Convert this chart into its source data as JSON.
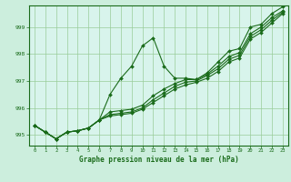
{
  "title": "Graphe pression niveau de la mer (hPa)",
  "background_color": "#cceedd",
  "plot_bg_color": "#d8f4ec",
  "grid_color": "#99cc99",
  "line_color": "#1a6b1a",
  "marker_color": "#1a6b1a",
  "xlim": [
    -0.5,
    23.5
  ],
  "ylim": [
    994.6,
    999.8
  ],
  "yticks": [
    995,
    996,
    997,
    998,
    999
  ],
  "xticks": [
    0,
    1,
    2,
    3,
    4,
    5,
    6,
    7,
    8,
    9,
    10,
    11,
    12,
    13,
    14,
    15,
    16,
    17,
    18,
    19,
    20,
    21,
    22,
    23
  ],
  "series": [
    [
      995.35,
      995.1,
      994.85,
      995.1,
      995.15,
      995.25,
      995.55,
      996.5,
      997.1,
      997.55,
      998.3,
      998.6,
      997.55,
      997.1,
      997.1,
      997.05,
      997.3,
      997.7,
      998.1,
      998.2,
      999.0,
      999.1,
      999.5,
      999.75
    ],
    [
      995.35,
      995.1,
      994.85,
      995.1,
      995.15,
      995.25,
      995.55,
      995.85,
      995.9,
      995.95,
      996.1,
      996.45,
      996.7,
      996.9,
      997.05,
      997.05,
      997.25,
      997.55,
      997.9,
      998.05,
      998.75,
      999.0,
      999.35,
      999.6
    ],
    [
      995.35,
      995.1,
      994.85,
      995.1,
      995.15,
      995.25,
      995.55,
      995.75,
      995.8,
      995.85,
      996.0,
      996.3,
      996.55,
      996.8,
      996.95,
      997.0,
      997.2,
      997.45,
      997.8,
      997.95,
      998.65,
      998.9,
      999.25,
      999.55
    ],
    [
      995.35,
      995.1,
      994.85,
      995.1,
      995.15,
      995.25,
      995.55,
      995.7,
      995.75,
      995.8,
      995.95,
      996.2,
      996.45,
      996.7,
      996.85,
      996.95,
      997.1,
      997.35,
      997.7,
      997.85,
      998.55,
      998.8,
      999.15,
      999.5
    ]
  ]
}
